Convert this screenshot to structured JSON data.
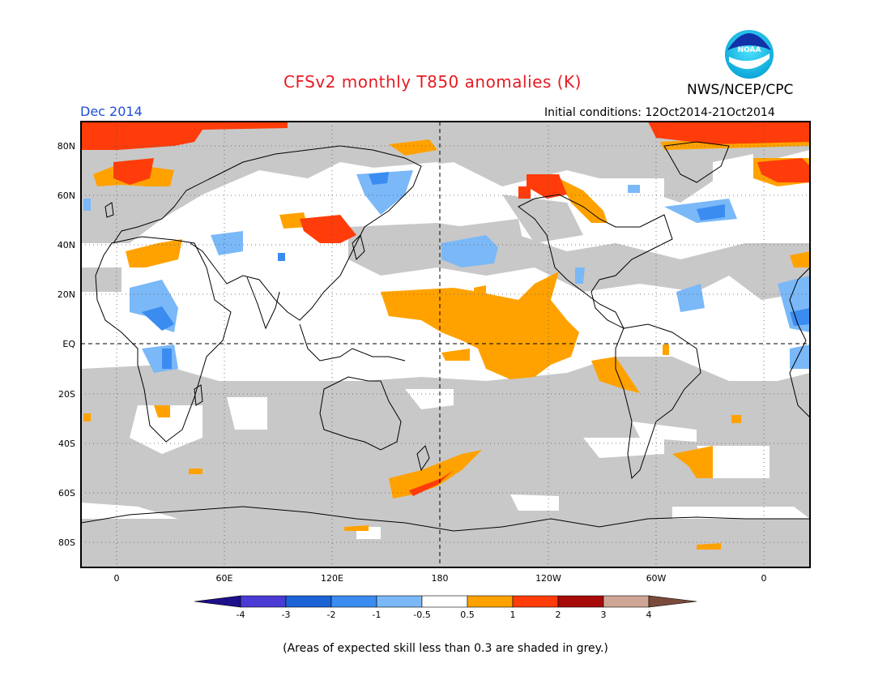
{
  "title": "CFSv2 monthly T850 anomalies (K)",
  "agency": "NWS/NCEP/CPC",
  "logo_text": "NOAA",
  "valid_month": "Dec 2014",
  "initial_conditions": "Initial conditions: 12Oct2014-21Oct2014",
  "caption": "(Areas of expected skill less than 0.3 are shaded in grey.)",
  "lat_labels": [
    "80N",
    "60N",
    "40N",
    "20N",
    "EQ",
    "20S",
    "40S",
    "60S",
    "80S"
  ],
  "lon_labels": [
    "0",
    "60E",
    "120E",
    "180",
    "120W",
    "60W",
    "0"
  ],
  "colorbar": {
    "labels": [
      "-4",
      "-3",
      "-2",
      "-1",
      "-0.5",
      "0.5",
      "1",
      "2",
      "3",
      "4"
    ],
    "colors": [
      "#1e0f8a",
      "#4a3bd4",
      "#1c63d6",
      "#3b8cf0",
      "#7ab8f8",
      "#ffffff",
      "#ffa200",
      "#ff3c0a",
      "#a80a0a",
      "#cfa595",
      "#7a4a3a"
    ]
  },
  "colors": {
    "skill_mask_grey": "#c8c8c8",
    "title": "#e51c23",
    "valid": "#1d4fd8"
  }
}
